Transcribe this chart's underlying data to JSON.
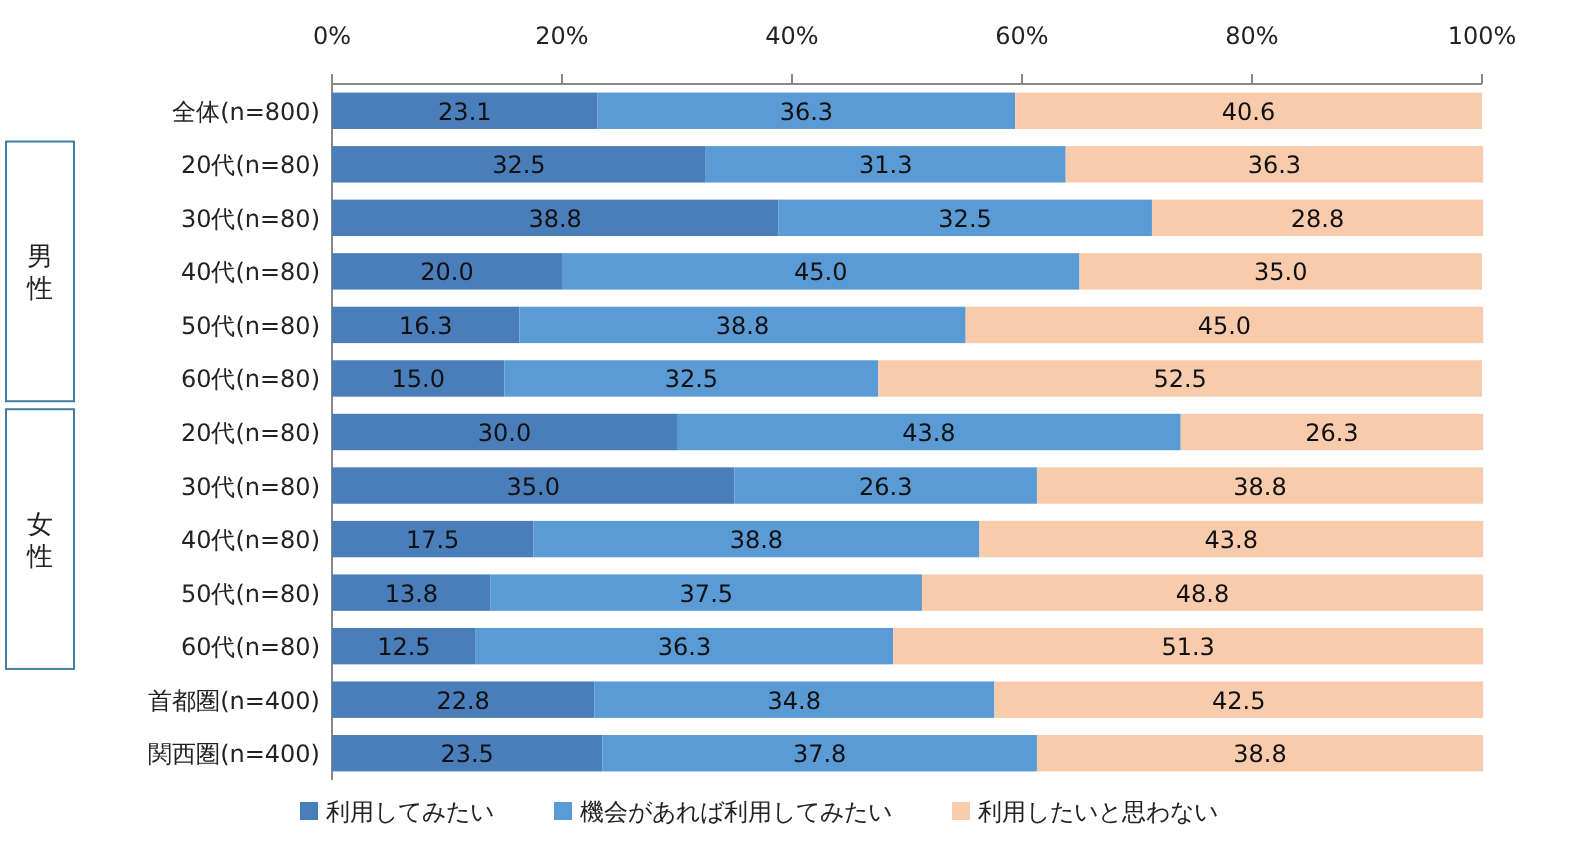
{
  "chart_data": {
    "type": "bar",
    "orientation": "horizontal",
    "stacked": true,
    "legend": "bottom",
    "categories": [
      "全体(n=800)",
      "20代(n=80)",
      "30代(n=80)",
      "40代(n=80)",
      "50代(n=80)",
      "60代(n=80)",
      "20代(n=80)",
      "30代(n=80)",
      "40代(n=80)",
      "50代(n=80)",
      "60代(n=80)",
      "首都圏(n=400)",
      "関西圏(n=400)"
    ],
    "xlim": [
      0,
      100
    ],
    "xticks": [
      {
        "value": 0,
        "label": "0%"
      },
      {
        "value": 20,
        "label": "20%"
      },
      {
        "value": 40,
        "label": "40%"
      },
      {
        "value": 60,
        "label": "60%"
      },
      {
        "value": 80,
        "label": "80%"
      },
      {
        "value": 100,
        "label": "100%"
      }
    ],
    "series": [
      {
        "name": "利用してみたい",
        "color": "#4a7ebb",
        "values": [
          23.1,
          32.5,
          38.8,
          20,
          16.3,
          15,
          30,
          35,
          17.5,
          13.8,
          12.5,
          22.8,
          23.5
        ],
        "value_labels": [
          "23.1",
          "32.5",
          "38.8",
          "20.0",
          "16.3",
          "15.0",
          "30.0",
          "35.0",
          "17.5",
          "13.8",
          "12.5",
          "22.8",
          "23.5"
        ]
      },
      {
        "name": "機会があれば利用してみたい",
        "color": "#5b9bd5",
        "values": [
          36.3,
          31.3,
          32.5,
          45,
          38.8,
          32.5,
          43.8,
          26.3,
          38.8,
          37.5,
          36.3,
          34.8,
          37.8
        ],
        "value_labels": [
          "36.3",
          "31.3",
          "32.5",
          "45.0",
          "38.8",
          "32.5",
          "43.8",
          "26.3",
          "38.8",
          "37.5",
          "36.3",
          "34.8",
          "37.8"
        ]
      },
      {
        "name": "利用したいと思わない",
        "color": "#f8cbad",
        "values": [
          40.6,
          36.3,
          28.8,
          35,
          45,
          52.5,
          26.3,
          38.8,
          43.8,
          48.8,
          51.3,
          42.5,
          38.8
        ],
        "value_labels": [
          "40.6",
          "36.3",
          "28.8",
          "35.0",
          "45.0",
          "52.5",
          "26.3",
          "38.8",
          "43.8",
          "48.8",
          "51.3",
          "42.5",
          "38.8"
        ]
      }
    ],
    "annotations": [
      "男性",
      "女性"
    ]
  }
}
